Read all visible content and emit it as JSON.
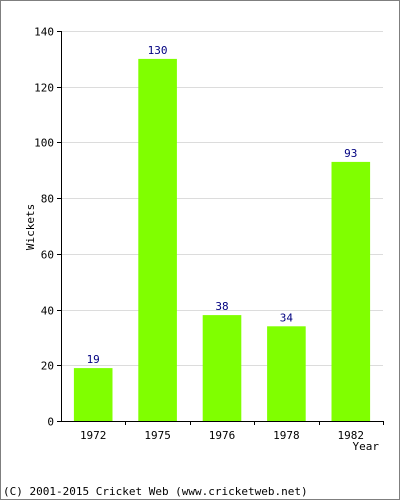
{
  "chart_data": {
    "type": "bar",
    "categories": [
      "1972",
      "1975",
      "1976",
      "1978",
      "1982"
    ],
    "values": [
      19,
      130,
      38,
      34,
      93
    ],
    "xlabel": "Year",
    "ylabel": "Wickets",
    "ylim": [
      0,
      140
    ],
    "yticks": [
      0,
      20,
      40,
      60,
      80,
      100,
      120,
      140
    ],
    "grid": true,
    "bar_color": "#80ff00",
    "value_label_color": "#000080"
  },
  "footer": {
    "credit": "(C) 2001-2015 Cricket Web (www.cricketweb.net)"
  }
}
